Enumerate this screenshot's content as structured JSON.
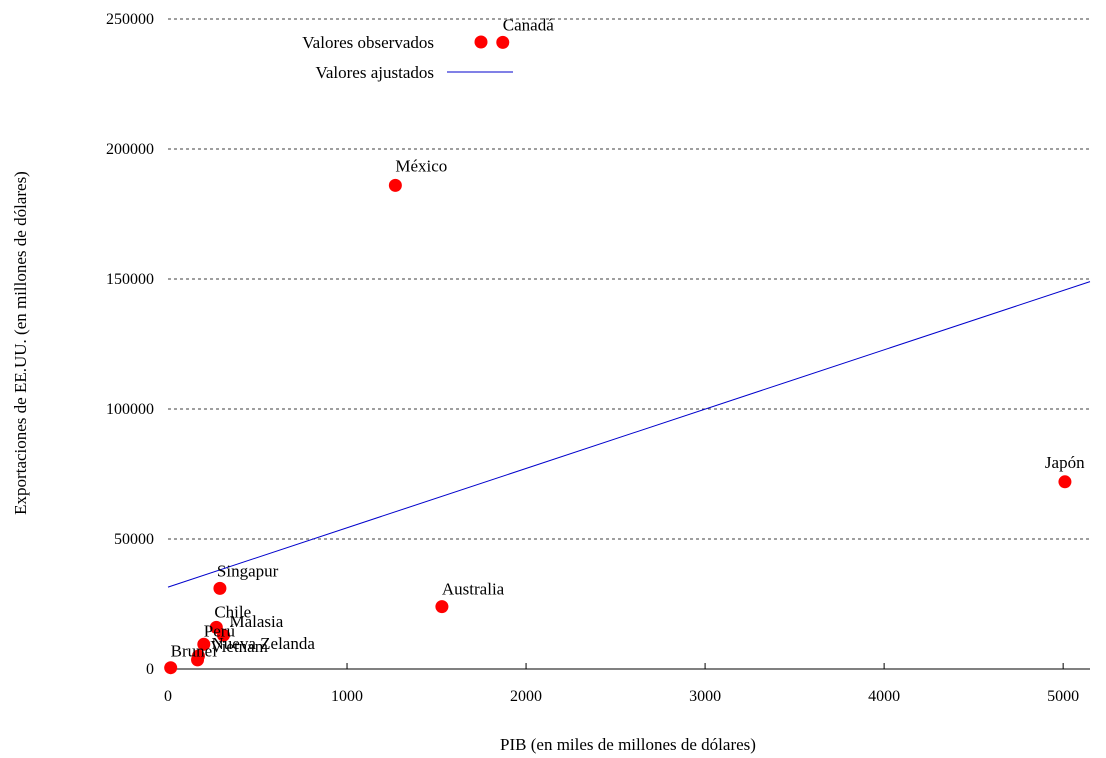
{
  "chart_data": {
    "type": "scatter",
    "title": "",
    "xlabel": "PIB (en miles de millones de dólares)",
    "ylabel": "Exportaciones de EE.UU. (en millones de dólares)",
    "xlim": [
      0,
      5150
    ],
    "ylim": [
      0,
      250000
    ],
    "xticks": [
      0,
      1000,
      2000,
      3000,
      4000,
      5000
    ],
    "yticks": [
      0,
      50000,
      100000,
      150000,
      200000,
      250000
    ],
    "grid": "horizontal dashed",
    "legend_placement": "top-right",
    "colors": {
      "points": "#ff0000",
      "line": "#0000cc"
    },
    "series": [
      {
        "name": "Valores observados",
        "kind": "scatter",
        "points": [
          {
            "label": "Canadá",
            "x": 1870,
            "y": 241000
          },
          {
            "label": "México",
            "x": 1270,
            "y": 186000
          },
          {
            "label": "Japón",
            "x": 5010,
            "y": 72000
          },
          {
            "label": "Australia",
            "x": 1530,
            "y": 24000
          },
          {
            "label": "Singapur",
            "x": 290,
            "y": 31000
          },
          {
            "label": "Chile",
            "x": 270,
            "y": 16000
          },
          {
            "label": "Malasia",
            "x": 310,
            "y": 13000
          },
          {
            "label": "Perú",
            "x": 200,
            "y": 9500
          },
          {
            "label": "Vietnam",
            "x": 170,
            "y": 5000
          },
          {
            "label": "Nueva Zelanda",
            "x": 165,
            "y": 3500
          },
          {
            "label": "Brunei",
            "x": 15,
            "y": 500
          }
        ]
      },
      {
        "name": "Valores ajustados",
        "kind": "line",
        "points": [
          {
            "x": 0,
            "y": 31500
          },
          {
            "x": 5150,
            "y": 149000
          }
        ]
      }
    ]
  }
}
